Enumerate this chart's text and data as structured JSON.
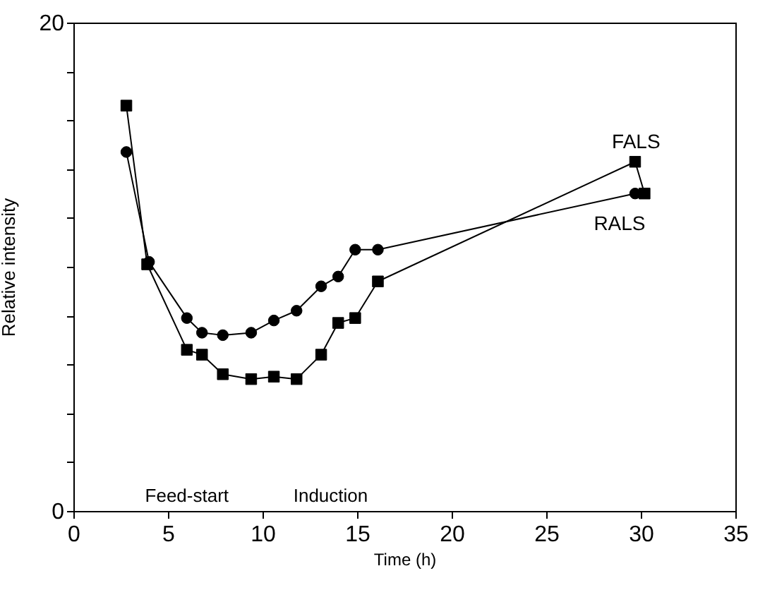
{
  "chart_data": {
    "type": "line",
    "xlabel": "Time (h)",
    "ylabel": "Relative intensity",
    "xlim": [
      0,
      35
    ],
    "xticks": [
      0,
      5,
      10,
      15,
      20,
      25,
      30,
      35
    ],
    "ylim": [
      0,
      20
    ],
    "yticks": [
      0,
      {
        "value": 2,
        "label": null
      },
      {
        "value": 4,
        "label": null
      },
      {
        "value": 6,
        "label": null
      },
      {
        "value": 8,
        "label": null
      },
      {
        "value": 10,
        "label": null
      },
      {
        "value": 12,
        "label": null
      },
      {
        "value": 14,
        "label": null
      },
      {
        "value": 16,
        "label": null
      },
      {
        "value": 18,
        "label": null
      },
      20
    ],
    "grid": false,
    "legend": false,
    "line_style": "solid",
    "series": [
      {
        "name": "FALS",
        "color": "#000000",
        "marker": "square",
        "x": [
          2.8,
          3.9,
          6.0,
          6.8,
          7.9,
          9.4,
          10.6,
          11.8,
          13.1,
          14.0,
          14.9,
          16.1,
          29.7,
          30.2
        ],
        "values": [
          16.6,
          10.1,
          6.6,
          6.4,
          5.6,
          5.4,
          5.5,
          5.4,
          6.4,
          7.7,
          7.9,
          9.4,
          14.3,
          13.0
        ]
      },
      {
        "name": "RALS",
        "color": "#000000",
        "marker": "circle",
        "x": [
          2.8,
          4.0,
          6.0,
          6.8,
          7.9,
          9.4,
          10.6,
          11.8,
          13.1,
          14.0,
          14.9,
          16.1,
          29.7
        ],
        "values": [
          14.7,
          10.2,
          7.9,
          7.3,
          7.2,
          7.3,
          7.8,
          8.2,
          9.2,
          9.6,
          10.7,
          10.7,
          13.0
        ]
      }
    ],
    "annotations": [
      "Feed-start",
      "Induction"
    ]
  }
}
